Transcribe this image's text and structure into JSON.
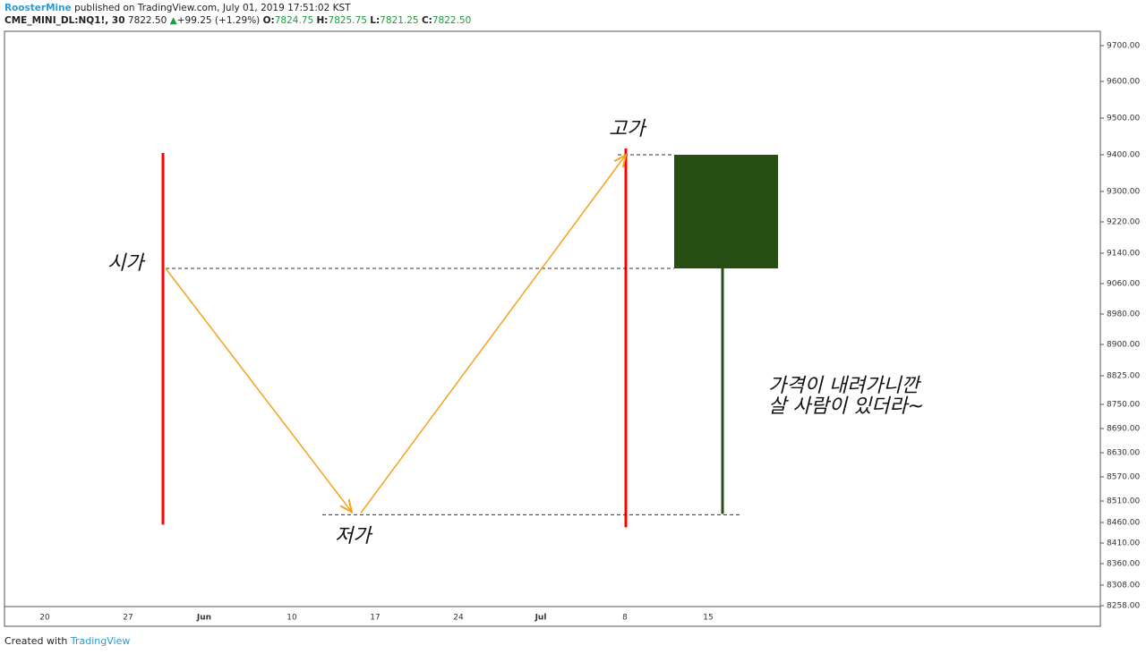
{
  "header": {
    "author": "RoosterMine",
    "published": "published on TradingView.com, July 01, 2019 17:51:02 KST",
    "symbol": "CME_MINI_DL:NQ1!, 30",
    "last": "7822.50",
    "arrow": "▲",
    "change": "+99.25 (+1.29%)",
    "o_label": "O:",
    "o": "7824.75",
    "h_label": "H:",
    "h": "7825.75",
    "l_label": "L:",
    "l": "7821.25",
    "c_label": "C:",
    "c": "7822.50"
  },
  "chart_data": {
    "type": "candlestick",
    "color": "#274e13",
    "open": 9100,
    "high": 9400,
    "low": 8480,
    "close": 9400,
    "categories": [
      "20",
      "27",
      "Jun",
      "10",
      "17",
      "24",
      "Jul",
      "8",
      "15"
    ],
    "ylim": [
      8258,
      9740
    ],
    "yticks": [
      {
        "value": 9700,
        "label": "9700.00"
      },
      {
        "value": 9600,
        "label": "9600.00"
      },
      {
        "value": 9500,
        "label": "9500.00"
      },
      {
        "value": 9400,
        "label": "9400.00"
      },
      {
        "value": 9300,
        "label": "9300.00"
      },
      {
        "value": 9220,
        "label": "9220.00"
      },
      {
        "value": 9140,
        "label": "9140.00"
      },
      {
        "value": 9060,
        "label": "9060.00"
      },
      {
        "value": 8980,
        "label": "8980.00"
      },
      {
        "value": 8900,
        "label": "8900.00"
      },
      {
        "value": 8825,
        "label": "8825.00"
      },
      {
        "value": 8750,
        "label": "8750.00"
      },
      {
        "value": 8690,
        "label": "8690.00"
      },
      {
        "value": 8630,
        "label": "8630.00"
      },
      {
        "value": 8570,
        "label": "8570.00"
      },
      {
        "value": 8510,
        "label": "8510.00"
      },
      {
        "value": 8460,
        "label": "8460.00"
      },
      {
        "value": 8410,
        "label": "8410.00"
      },
      {
        "value": 8360,
        "label": "8360.00"
      },
      {
        "value": 8308,
        "label": "8308.00"
      },
      {
        "value": 8258,
        "label": "8258.00"
      }
    ],
    "annotations": {
      "open": "시가",
      "low": "저가",
      "high": "고가",
      "note_line1": "가격이 내려가니깐",
      "note_line2": "살 사람이 있더라~"
    }
  },
  "footer": {
    "created": "Created with",
    "brand": "TradingView"
  }
}
